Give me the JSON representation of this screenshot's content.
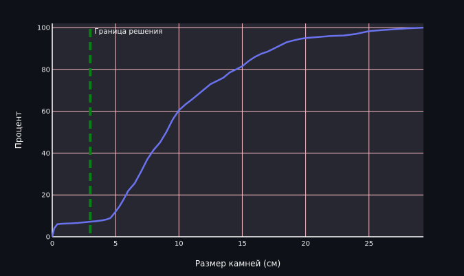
{
  "chart_data": {
    "type": "line",
    "xlabel": "Размер камней (см)",
    "ylabel": "Процент",
    "xlim": [
      0,
      29.3
    ],
    "ylim": [
      0,
      102
    ],
    "xticks": [
      0,
      5,
      10,
      15,
      20,
      25
    ],
    "yticks": [
      0,
      20,
      40,
      60,
      80,
      100
    ],
    "grid": true,
    "colors": {
      "page_background": "#0e1117",
      "plot_background": "#262730",
      "grid": "#ffc0cb",
      "line": "#6b72ee",
      "threshold": "#0a7f16",
      "text": "#f2f2f2"
    },
    "series": [
      {
        "values_x": [
          0,
          0.15,
          0.4,
          0.7,
          1.5,
          2.0,
          2.5,
          3.0,
          3.5,
          4.0,
          4.3,
          4.6,
          4.8,
          5.0,
          5.3,
          5.6,
          6.0,
          6.5,
          7.0,
          7.5,
          8.0,
          8.5,
          9.0,
          9.5,
          10.0,
          10.5,
          11.0,
          11.5,
          12.0,
          12.5,
          13.0,
          13.5,
          14.0,
          14.5,
          15.0,
          15.5,
          16.0,
          16.5,
          17.0,
          17.5,
          18.0,
          18.5,
          19.0,
          19.5,
          20.0,
          21.0,
          22.0,
          23.0,
          24.0,
          25.0,
          26.0,
          27.0,
          28.0,
          29.3
        ],
        "values_y": [
          0,
          4,
          6,
          6.2,
          6.4,
          6.6,
          6.9,
          7.2,
          7.5,
          7.9,
          8.3,
          9.0,
          10.5,
          12,
          14.5,
          17.5,
          22,
          25.5,
          31,
          37,
          41.5,
          45,
          50,
          56,
          60.5,
          63.2,
          65.5,
          68,
          70.5,
          73,
          74.5,
          76,
          78.5,
          80,
          81.5,
          84,
          86,
          87.5,
          88.5,
          90,
          91.5,
          93,
          93.8,
          94.5,
          95,
          95.5,
          96,
          96.2,
          97,
          98.3,
          98.8,
          99.2,
          99.6,
          100
        ]
      }
    ],
    "threshold": {
      "x": 3,
      "label": "Граница решения"
    }
  }
}
